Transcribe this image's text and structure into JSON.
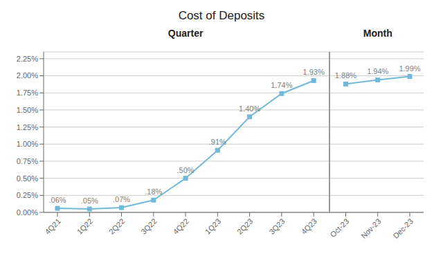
{
  "chart_data": {
    "type": "line",
    "title": "Cost of Deposits",
    "categories": [
      "4Q21",
      "1Q22",
      "2Q22",
      "3Q22",
      "4Q22",
      "1Q23",
      "2Q23",
      "3Q23",
      "4Q23",
      "Oct-23",
      "Nov-23",
      "Dec-23"
    ],
    "series": [
      {
        "name": "Quarter",
        "color": "#72B8D8",
        "marker": "square",
        "values": [
          0.0006,
          0.0005,
          0.0007,
          0.0018,
          0.005,
          0.0091,
          0.014,
          0.0174,
          0.0193,
          null,
          null,
          null
        ],
        "value_labels": [
          ".06%",
          ".05%",
          ".07%",
          ".18%",
          ".50%",
          ".91%",
          "1.40%",
          "1.74%",
          "1.93%",
          null,
          null,
          null
        ]
      },
      {
        "name": "Month",
        "color": "#72B8D8",
        "marker": "square",
        "values": [
          null,
          null,
          null,
          null,
          null,
          null,
          null,
          null,
          null,
          0.0188,
          0.0194,
          0.0199
        ],
        "value_labels": [
          null,
          null,
          null,
          null,
          null,
          null,
          null,
          null,
          null,
          "1.88%",
          "1.94%",
          "1.99%"
        ]
      }
    ],
    "ylim": [
      0,
      0.0235
    ],
    "yticks": [
      {
        "value": 0.0,
        "label": "0.00%"
      },
      {
        "value": 0.0025,
        "label": "0.25%"
      },
      {
        "value": 0.005,
        "label": "0.50%"
      },
      {
        "value": 0.0075,
        "label": "0.75%"
      },
      {
        "value": 0.01,
        "label": "1.00%"
      },
      {
        "value": 0.0125,
        "label": "1.25%"
      },
      {
        "value": 0.015,
        "label": "1.50%"
      },
      {
        "value": 0.0175,
        "label": "1.75%"
      },
      {
        "value": 0.02,
        "label": "2.00%"
      },
      {
        "value": 0.0225,
        "label": "2.25%"
      }
    ],
    "grid": true,
    "data_labels": true
  }
}
